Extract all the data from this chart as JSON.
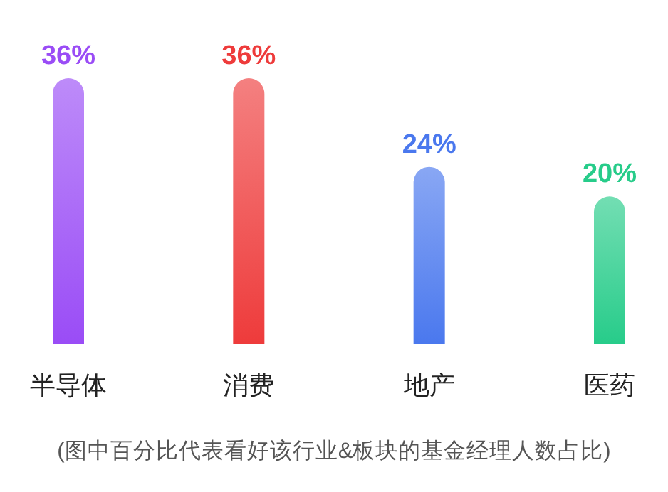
{
  "chart_data": {
    "type": "bar",
    "categories": [
      "半导体",
      "消费",
      "地产",
      "医药"
    ],
    "values": [
      36,
      36,
      24,
      20
    ],
    "colors": [
      "#9a4cf6",
      "#ee3b3b",
      "#4a78ee",
      "#27cc8a"
    ],
    "value_labels": [
      "36%",
      "36%",
      "24%",
      "20%"
    ],
    "annotations": [
      "(图中百分比代表看好该行业&板块的基金经理人数占比)"
    ]
  }
}
